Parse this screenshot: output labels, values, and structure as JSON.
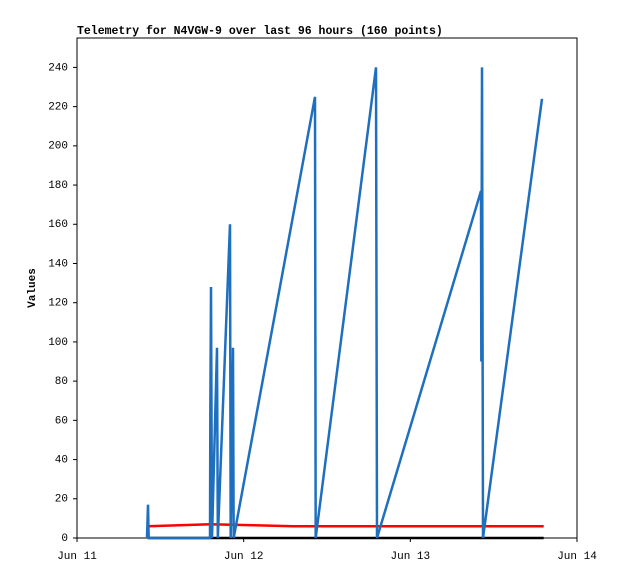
{
  "chart_data": {
    "type": "line",
    "title": "Telemetry for N4VGW-9 over last 96 hours (160 points)",
    "y_label": "Values",
    "xlim": [
      0,
      3
    ],
    "xticks": [
      {
        "value": 0,
        "label": "Jun 11"
      },
      {
        "value": 1,
        "label": "Jun 12"
      },
      {
        "value": 2,
        "label": "Jun 13"
      },
      {
        "value": 3,
        "label": "Jun 14"
      }
    ],
    "ylim": [
      0,
      255
    ],
    "yticks": [
      0,
      20,
      40,
      60,
      80,
      100,
      120,
      140,
      160,
      180,
      200,
      220,
      240
    ],
    "grid": false,
    "series": [
      {
        "color": "#000000",
        "x": [
          0.426,
          2.8
        ],
        "values": [
          0,
          0
        ]
      },
      {
        "color": "#ff0000",
        "x": [
          0.426,
          0.8,
          1.06,
          1.3,
          2.8
        ],
        "values": [
          6,
          7,
          6.5,
          6,
          6
        ]
      },
      {
        "color": "#1f6fbf",
        "x": [
          0.42,
          0.426,
          0.43,
          0.798,
          0.8,
          0.804,
          0.81,
          0.84,
          0.845,
          0.918,
          0.922,
          0.93,
          0.936,
          0.94,
          1.428,
          1.432,
          1.794,
          1.8,
          2.424,
          2.426,
          2.43,
          2.436,
          2.79
        ],
        "values": [
          0,
          17,
          0,
          0,
          65,
          128,
          0,
          97,
          0,
          160,
          0,
          48,
          97,
          0,
          225,
          0,
          240,
          0,
          177,
          90,
          240,
          0,
          224
        ]
      }
    ]
  }
}
